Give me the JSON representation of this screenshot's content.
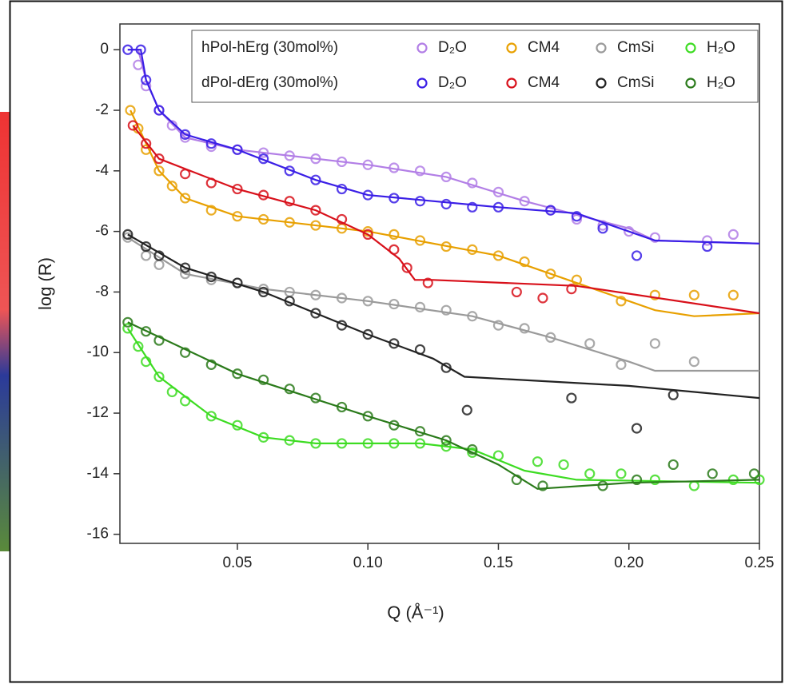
{
  "chart_data": {
    "type": "scatter",
    "xlabel": "Q (Å⁻¹)",
    "ylabel": "log (R)",
    "xlim": [
      0.005,
      0.25
    ],
    "ylim": [
      -16.3,
      0.85
    ],
    "xticks": [
      0.05,
      {
        "value": 0.1,
        "label": "0.10"
      },
      0.15,
      {
        "value": 0.2,
        "label": "0.20"
      },
      0.25
    ],
    "yticks": [
      0,
      -2,
      -4,
      -6,
      -8,
      -10,
      -12,
      -14,
      -16
    ],
    "groups": [
      "hPol-hErg (30mol%)",
      "dPol-dErg (30mol%)"
    ],
    "series": [
      {
        "name": "D₂O",
        "group": 0,
        "color": "#b27ee6",
        "x": [
          0.012,
          0.015,
          0.02,
          0.025,
          0.03,
          0.04,
          0.05,
          0.06,
          0.07,
          0.08,
          0.09,
          0.1,
          0.11,
          0.12,
          0.13,
          0.14,
          0.15,
          0.16,
          0.17,
          0.18,
          0.19,
          0.2,
          0.21,
          0.23,
          0.24
        ],
        "values": [
          -0.5,
          -1.2,
          -2.0,
          -2.5,
          -2.9,
          -3.2,
          -3.3,
          -3.4,
          -3.5,
          -3.6,
          -3.7,
          -3.8,
          -3.9,
          -4.0,
          -4.2,
          -4.4,
          -4.7,
          -5.0,
          -5.3,
          -5.6,
          -5.8,
          -6.0,
          -6.2,
          -6.3,
          -6.1
        ],
        "fit": {
          "x": [
            0.008,
            0.012,
            0.015,
            0.02,
            0.03,
            0.05,
            0.1,
            0.13,
            0.16,
            0.2,
            0.21,
            0.25
          ],
          "values": [
            0,
            0,
            -1,
            -2,
            -2.9,
            -3.3,
            -3.8,
            -4.2,
            -5.0,
            -5.9,
            -6.3,
            -6.4
          ]
        }
      },
      {
        "name": "CM4",
        "group": 0,
        "color": "#e8a000",
        "x": [
          0.009,
          0.012,
          0.015,
          0.02,
          0.025,
          0.03,
          0.04,
          0.05,
          0.06,
          0.07,
          0.08,
          0.09,
          0.1,
          0.11,
          0.12,
          0.13,
          0.14,
          0.15,
          0.16,
          0.17,
          0.18,
          0.197,
          0.21,
          0.225,
          0.24
        ],
        "values": [
          -2.0,
          -2.6,
          -3.3,
          -4.0,
          -4.5,
          -4.9,
          -5.3,
          -5.5,
          -5.6,
          -5.7,
          -5.8,
          -5.9,
          -6.0,
          -6.1,
          -6.3,
          -6.5,
          -6.6,
          -6.8,
          -7.0,
          -7.4,
          -7.6,
          -8.3,
          -8.1,
          -8.1,
          -8.1
        ],
        "fit": {
          "x": [
            0.009,
            0.02,
            0.03,
            0.05,
            0.1,
            0.15,
            0.18,
            0.21,
            0.225,
            0.25
          ],
          "values": [
            -2,
            -4,
            -4.9,
            -5.5,
            -6.0,
            -6.8,
            -7.7,
            -8.6,
            -8.8,
            -8.7
          ]
        }
      },
      {
        "name": "CmSi",
        "group": 0,
        "color": "#9a9a9a",
        "x": [
          0.008,
          0.015,
          0.02,
          0.03,
          0.04,
          0.05,
          0.06,
          0.07,
          0.08,
          0.09,
          0.1,
          0.11,
          0.12,
          0.13,
          0.14,
          0.15,
          0.16,
          0.17,
          0.185,
          0.197,
          0.21,
          0.225
        ],
        "values": [
          -6.2,
          -6.8,
          -7.1,
          -7.4,
          -7.6,
          -7.7,
          -7.9,
          -8.0,
          -8.1,
          -8.2,
          -8.3,
          -8.4,
          -8.5,
          -8.6,
          -8.8,
          -9.1,
          -9.2,
          -9.5,
          -9.7,
          -10.4,
          -9.7,
          -10.3
        ],
        "fit": {
          "x": [
            0.008,
            0.03,
            0.06,
            0.1,
            0.14,
            0.17,
            0.2,
            0.21,
            0.25
          ],
          "values": [
            -6.2,
            -7.4,
            -7.9,
            -8.3,
            -8.8,
            -9.5,
            -10.3,
            -10.6,
            -10.6
          ]
        }
      },
      {
        "name": "H₂O",
        "group": 0,
        "color": "#3ddc22",
        "x": [
          0.008,
          0.012,
          0.015,
          0.02,
          0.025,
          0.03,
          0.04,
          0.05,
          0.06,
          0.07,
          0.08,
          0.09,
          0.1,
          0.11,
          0.12,
          0.13,
          0.14,
          0.15,
          0.165,
          0.175,
          0.185,
          0.197,
          0.21,
          0.225,
          0.24,
          0.25
        ],
        "values": [
          -9.2,
          -9.8,
          -10.3,
          -10.8,
          -11.3,
          -11.6,
          -12.1,
          -12.4,
          -12.8,
          -12.9,
          -13.0,
          -13.0,
          -13.0,
          -13.0,
          -13.0,
          -13.1,
          -13.3,
          -13.4,
          -13.6,
          -13.7,
          -14.0,
          -14.0,
          -14.2,
          -14.4,
          -14.2,
          -14.2
        ],
        "fit": {
          "x": [
            0.008,
            0.02,
            0.04,
            0.06,
            0.08,
            0.12,
            0.14,
            0.16,
            0.18,
            0.25
          ],
          "values": [
            -9.2,
            -10.8,
            -12.1,
            -12.8,
            -13.0,
            -13.0,
            -13.2,
            -13.9,
            -14.2,
            -14.3
          ]
        }
      },
      {
        "name": "D₂O",
        "group": 1,
        "color": "#3a1ee6",
        "x": [
          0.008,
          0.013,
          0.015,
          0.02,
          0.03,
          0.04,
          0.05,
          0.06,
          0.07,
          0.08,
          0.09,
          0.1,
          0.11,
          0.12,
          0.13,
          0.14,
          0.15,
          0.17,
          0.18,
          0.19,
          0.203,
          0.23
        ],
        "values": [
          0,
          0,
          -1.0,
          -2.0,
          -2.8,
          -3.1,
          -3.3,
          -3.6,
          -4.0,
          -4.3,
          -4.6,
          -4.8,
          -4.9,
          -5.0,
          -5.1,
          -5.2,
          -5.2,
          -5.3,
          -5.5,
          -5.9,
          -6.8,
          -6.5
        ],
        "fit": {
          "x": [
            0.008,
            0.013,
            0.015,
            0.02,
            0.03,
            0.05,
            0.08,
            0.1,
            0.15,
            0.18,
            0.21,
            0.25
          ],
          "values": [
            0,
            0,
            -1,
            -2,
            -2.8,
            -3.3,
            -4.3,
            -4.8,
            -5.2,
            -5.4,
            -6.3,
            -6.4
          ]
        }
      },
      {
        "name": "CM4",
        "group": 1,
        "color": "#d8101a",
        "x": [
          0.01,
          0.015,
          0.02,
          0.03,
          0.04,
          0.05,
          0.06,
          0.07,
          0.08,
          0.09,
          0.1,
          0.11,
          0.115,
          0.123,
          0.157,
          0.167,
          0.178
        ],
        "values": [
          -2.5,
          -3.1,
          -3.6,
          -4.1,
          -4.4,
          -4.6,
          -4.8,
          -5.0,
          -5.3,
          -5.6,
          -6.1,
          -6.6,
          -7.2,
          -7.7,
          -8.0,
          -8.2,
          -7.9
        ],
        "fit": {
          "x": [
            0.01,
            0.02,
            0.05,
            0.08,
            0.1,
            0.112,
            0.118,
            0.125,
            0.18,
            0.25
          ],
          "values": [
            -2.5,
            -3.6,
            -4.6,
            -5.3,
            -6.1,
            -6.9,
            -7.6,
            -7.6,
            -7.8,
            -8.7
          ]
        }
      },
      {
        "name": "CmSi",
        "group": 1,
        "color": "#222222",
        "x": [
          0.008,
          0.015,
          0.02,
          0.03,
          0.04,
          0.05,
          0.06,
          0.07,
          0.08,
          0.09,
          0.1,
          0.11,
          0.12,
          0.13,
          0.138,
          0.178,
          0.203,
          0.217
        ],
        "values": [
          -6.1,
          -6.5,
          -6.8,
          -7.2,
          -7.5,
          -7.7,
          -8.0,
          -8.3,
          -8.7,
          -9.1,
          -9.4,
          -9.7,
          -9.9,
          -10.5,
          -11.9,
          -11.5,
          -12.5,
          -11.4
        ],
        "fit": {
          "x": [
            0.008,
            0.03,
            0.06,
            0.1,
            0.125,
            0.137,
            0.2,
            0.25
          ],
          "values": [
            -6.1,
            -7.2,
            -8.0,
            -9.4,
            -10.2,
            -10.8,
            -11.1,
            -11.5
          ]
        }
      },
      {
        "name": "H₂O",
        "group": 1,
        "color": "#2a7a1a",
        "x": [
          0.008,
          0.015,
          0.02,
          0.03,
          0.04,
          0.05,
          0.06,
          0.07,
          0.08,
          0.09,
          0.1,
          0.11,
          0.12,
          0.13,
          0.14,
          0.157,
          0.167,
          0.19,
          0.203,
          0.217,
          0.232,
          0.248
        ],
        "values": [
          -9.0,
          -9.3,
          -9.6,
          -10.0,
          -10.4,
          -10.7,
          -10.9,
          -11.2,
          -11.5,
          -11.8,
          -12.1,
          -12.4,
          -12.6,
          -12.9,
          -13.2,
          -14.2,
          -14.4,
          -14.4,
          -14.2,
          -13.7,
          -14.0,
          -14.0
        ],
        "fit": {
          "x": [
            0.008,
            0.05,
            0.1,
            0.13,
            0.15,
            0.165,
            0.2,
            0.25
          ],
          "values": [
            -9.0,
            -10.7,
            -12.1,
            -12.9,
            -13.7,
            -14.5,
            -14.3,
            -14.2
          ]
        }
      }
    ]
  }
}
